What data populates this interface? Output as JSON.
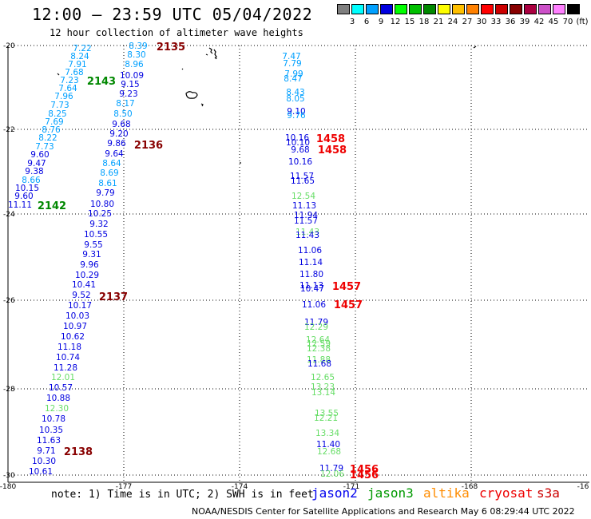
{
  "title": "12:00 — 23:59 UTC 05/04/2022",
  "subtitle": "12 hour collection of altimeter wave heights",
  "colorscale": {
    "colors": [
      "#7f7f7f",
      "#00ffff",
      "#00a0ff",
      "#0000e0",
      "#00ff00",
      "#00c000",
      "#008800",
      "#ffff00",
      "#ffc000",
      "#ff8000",
      "#ff0000",
      "#cc0000",
      "#880000",
      "#aa0040",
      "#cc50c8",
      "#ff80ff",
      "#000000"
    ],
    "labels": [
      "3",
      "6",
      "9",
      "12",
      "15",
      "18",
      "21",
      "24",
      "27",
      "30",
      "33",
      "36",
      "39",
      "42",
      "45",
      "70",
      "(ft)"
    ]
  },
  "axes": {
    "x_labels": [
      "-180",
      "-177",
      "-174",
      "-171",
      "-168",
      "-16"
    ],
    "y_labels": [
      "-20",
      "-22",
      "-24",
      "-26",
      "-28",
      "-30"
    ]
  },
  "note": "note: 1) Time is in UTC; 2) SWH is in feet",
  "legend": [
    {
      "name": "jason2",
      "color": "#0000ee"
    },
    {
      "name": "jason3",
      "color": "#009900"
    },
    {
      "name": "altika",
      "color": "#ff8c00"
    },
    {
      "name": "cryosat",
      "color": "#ee0000"
    },
    {
      "name": "s3a",
      "color": "#cc0000"
    }
  ],
  "footer": "NOAA/NESDIS Center for Satellite Applications and Research   May  6 08:29:44 UTC 2022",
  "map": {
    "track_labels": [
      {
        "text": "2135",
        "color": "#880000"
      },
      {
        "text": "2143",
        "color": "#008800"
      },
      {
        "text": "2136",
        "color": "#880000"
      },
      {
        "text": "2142",
        "color": "#008800"
      },
      {
        "text": "2137",
        "color": "#880000"
      },
      {
        "text": "2138",
        "color": "#880000"
      },
      {
        "text": "1458",
        "color": "#ee0000"
      },
      {
        "text": "1458",
        "color": "#ee0000"
      },
      {
        "text": "1457",
        "color": "#ee0000"
      },
      {
        "text": "1457",
        "color": "#ee0000"
      },
      {
        "text": "1456",
        "color": "#ee0000"
      },
      {
        "text": "1456",
        "color": "#ee0000"
      }
    ],
    "track_a": [
      "7.22",
      "8.24",
      "7.91",
      "7.68",
      "7.23",
      "7.64",
      "7.96",
      "7.73",
      "8.25",
      "7.69",
      "8.76",
      "8.22",
      "7.73",
      "9.60",
      "9.47",
      "9.38",
      "8.66",
      "10.15",
      "9.60",
      "11.11"
    ],
    "track_a_colors": [
      "#00a0ff",
      "#00a0ff",
      "#00a0ff",
      "#00a0ff",
      "#00a0ff",
      "#00a0ff",
      "#00a0ff",
      "#00a0ff",
      "#00a0ff",
      "#00a0ff",
      "#00a0ff",
      "#00a0ff",
      "#00a0ff",
      "#0000e0",
      "#0000e0",
      "#0000e0",
      "#00a0ff",
      "#0000e0",
      "#0000e0",
      "#0000e0"
    ],
    "track_b": [
      "8.39",
      "8.30",
      "8.96",
      "10.09",
      "9.15",
      "9.23",
      "8.17",
      "8.50",
      "9.68",
      "9.20",
      "9.86",
      "9.64",
      "8.64",
      "8.69",
      "8.61",
      "9.79",
      "10.80",
      "10.25",
      "9.32",
      "10.55",
      "9.55",
      "9.31",
      "9.96",
      "10.29",
      "10.41",
      "9.52",
      "10.17",
      "10.03",
      "10.97",
      "10.62",
      "11.18",
      "10.74",
      "11.28",
      "12.01",
      "10.57",
      "10.88",
      "12.30",
      "10.78",
      "10.35",
      "11.63",
      "9.71",
      "10.30",
      "10.61"
    ],
    "track_b_colors": [
      "#00a0ff",
      "#00a0ff",
      "#00a0ff",
      "#0000e0",
      "#0000e0",
      "#0000e0",
      "#00a0ff",
      "#00a0ff",
      "#0000e0",
      "#0000e0",
      "#0000e0",
      "#0000e0",
      "#00a0ff",
      "#00a0ff",
      "#00a0ff",
      "#0000e0",
      "#0000e0",
      "#0000e0",
      "#0000e0",
      "#0000e0",
      "#0000e0",
      "#0000e0",
      "#0000e0",
      "#0000e0",
      "#0000e0",
      "#0000e0",
      "#0000e0",
      "#0000e0",
      "#0000e0",
      "#0000e0",
      "#0000e0",
      "#0000e0",
      "#0000e0",
      "#66dd66",
      "#0000e0",
      "#0000e0",
      "#66dd66",
      "#0000e0",
      "#0000e0",
      "#0000e0",
      "#0000e0",
      "#0000e0",
      "#0000e0"
    ],
    "track_c": [
      "7.47",
      "7.79",
      "7.99",
      "8.47",
      "8.43",
      "8.05",
      "9.10",
      "9.76",
      "10.16",
      "10.10",
      "9.68",
      "10.16",
      "11.57",
      "11.65",
      "12.54",
      "11.13",
      "11.94",
      "11.57",
      "11.43",
      "11.43",
      "11.06",
      "11.14",
      "11.80",
      "11.13",
      "10.47",
      "11.06",
      "11.79",
      "12.29",
      "12.64",
      "12.59",
      "12.38",
      "11.88",
      "11.68",
      "12.65",
      "13.23",
      "13.14",
      "13.55",
      "12.21",
      "13.34",
      "11.40",
      "12.68",
      "11.79",
      "12.06"
    ],
    "track_c_colors": [
      "#00a0ff",
      "#00a0ff",
      "#00a0ff",
      "#00a0ff",
      "#00a0ff",
      "#00a0ff",
      "#0000e0",
      "#00a0ff",
      "#0000e0",
      "#0000e0",
      "#0000e0",
      "#0000e0",
      "#0000e0",
      "#0000e0",
      "#66dd66",
      "#0000e0",
      "#0000e0",
      "#0000e0",
      "#66dd66",
      "#0000e0",
      "#0000e0",
      "#0000e0",
      "#0000e0",
      "#0000e0",
      "#0000e0",
      "#0000e0",
      "#0000e0",
      "#66dd66",
      "#66dd66",
      "#66dd66",
      "#66dd66",
      "#66dd66",
      "#0000e0",
      "#66dd66",
      "#66dd66",
      "#66dd66",
      "#66dd66",
      "#66dd66",
      "#66dd66",
      "#0000e0",
      "#66dd66",
      "#0000e0",
      "#66dd66"
    ]
  }
}
